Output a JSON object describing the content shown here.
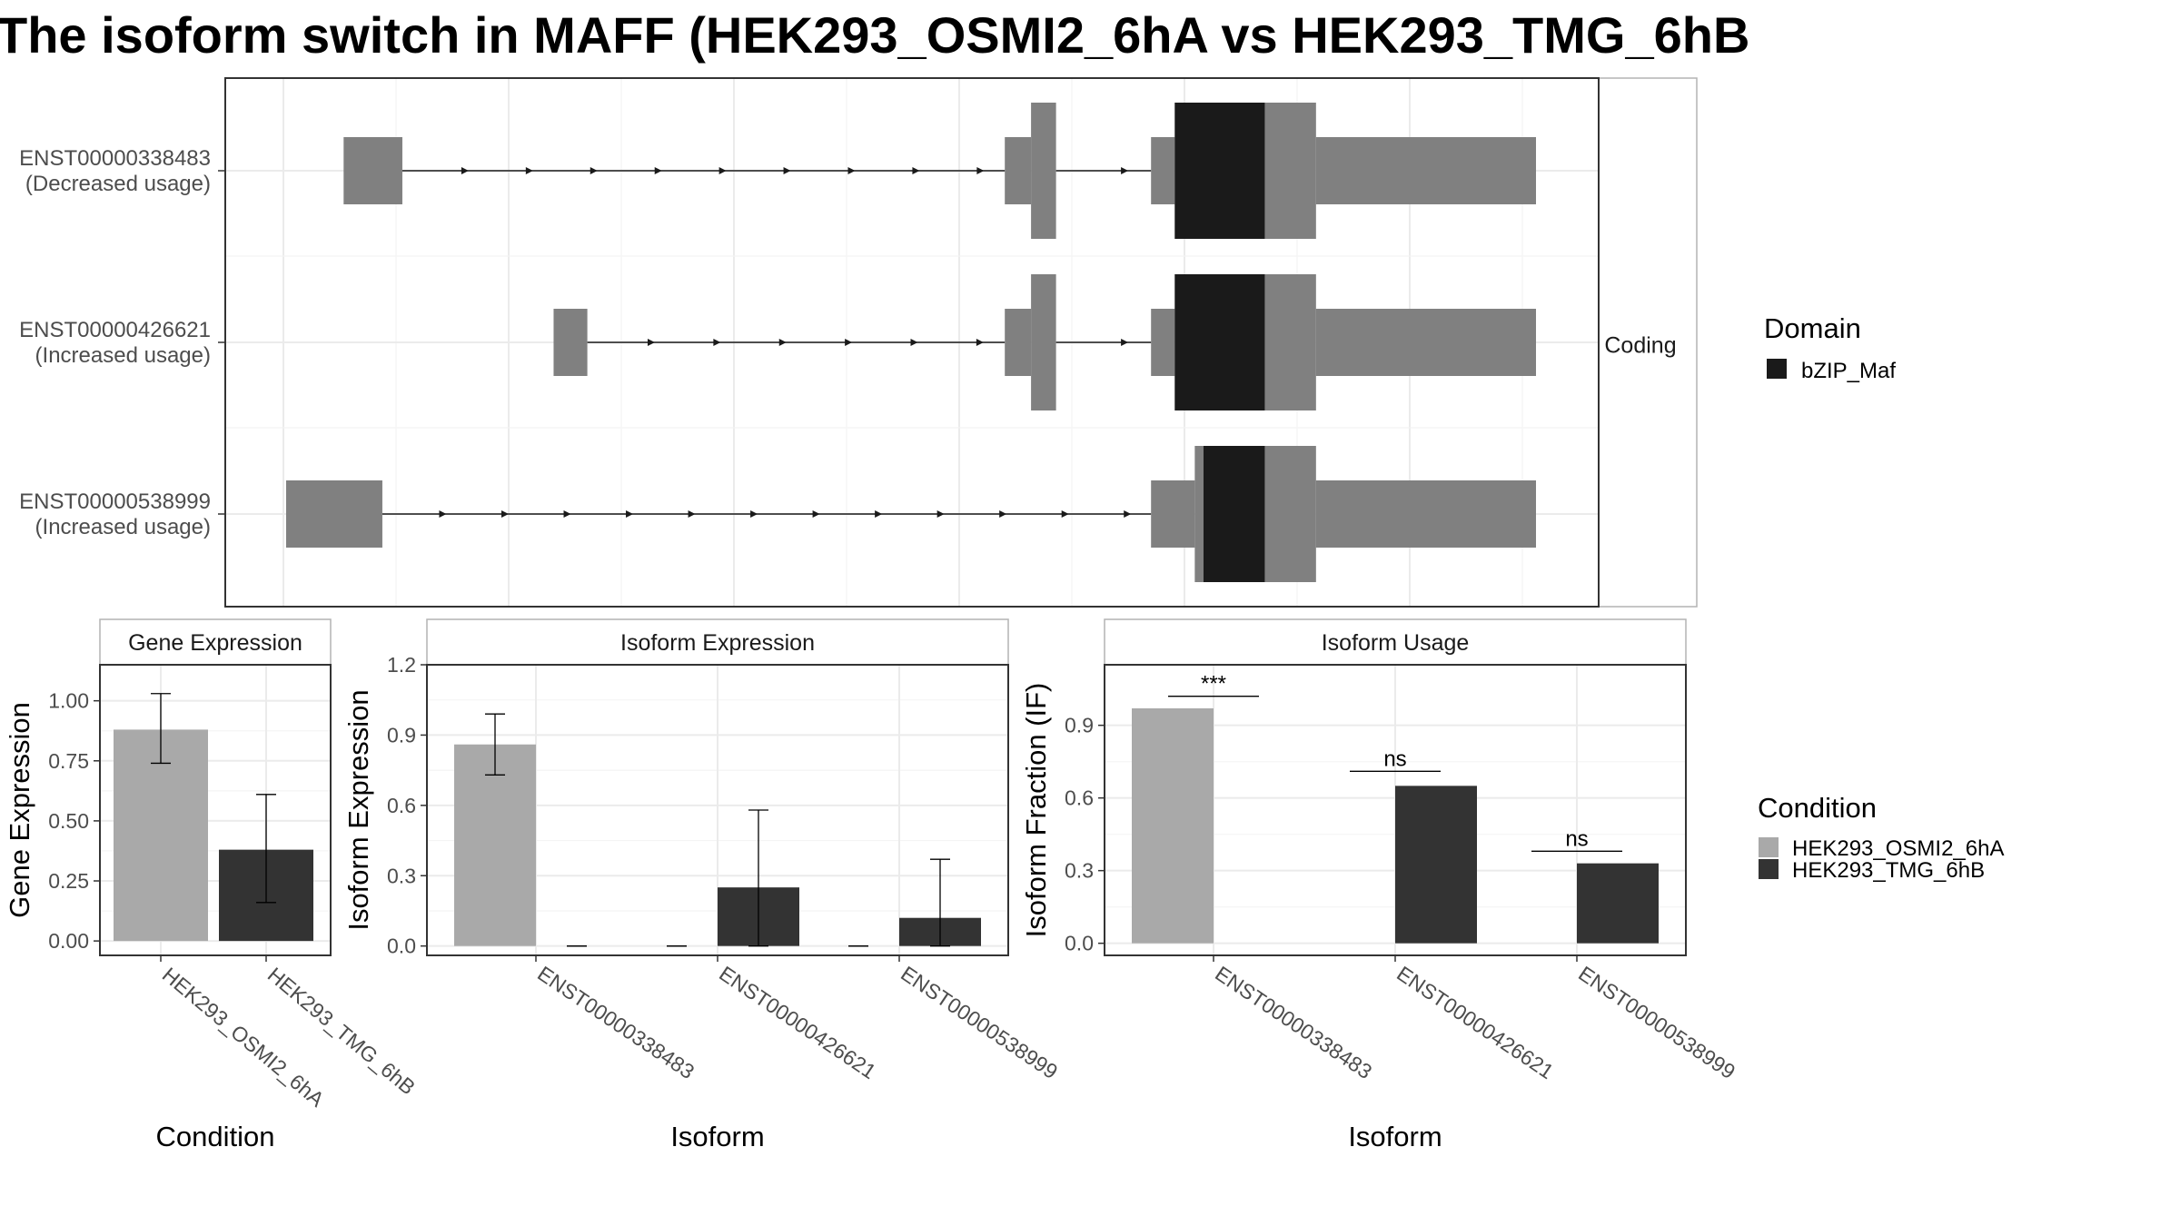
{
  "title": "The isoform switch in MAFF (HEK293_OSMI2_6hA vs HEK293_TMG_6hB",
  "colors": {
    "cond1": "#a9a9a9",
    "cond2": "#333333",
    "exon": "#808080",
    "domain": "#1a1a1a",
    "grid": "#ebebeb",
    "panel_border": "#333333",
    "strip_border": "#b3b3b3"
  },
  "structure": {
    "facet_label": "Coding",
    "isoforms": [
      {
        "id": "ENST00000338483",
        "usage": "(Decreased usage)",
        "exons": [
          [
            0.046,
            0.093
          ],
          [
            0.575,
            0.596
          ],
          [
            0.596,
            0.616
          ],
          [
            0.692,
            0.711
          ],
          [
            0.711,
            0.783
          ],
          [
            0.783,
            0.824
          ],
          [
            0.824,
            1.0
          ]
        ],
        "coding": [
          false,
          false,
          true,
          false,
          true,
          true,
          false
        ],
        "domains": [
          [
            0.711,
            0.783
          ]
        ]
      },
      {
        "id": "ENST00000426621",
        "usage": "(Increased usage)",
        "exons": [
          [
            0.214,
            0.241
          ],
          [
            0.575,
            0.596
          ],
          [
            0.596,
            0.616
          ],
          [
            0.692,
            0.711
          ],
          [
            0.711,
            0.783
          ],
          [
            0.783,
            0.824
          ],
          [
            0.824,
            1.0
          ]
        ],
        "coding": [
          false,
          false,
          true,
          false,
          true,
          true,
          false
        ],
        "domains": [
          [
            0.711,
            0.783
          ]
        ]
      },
      {
        "id": "ENST00000538999",
        "usage": "(Increased usage)",
        "exons": [
          [
            0.0,
            0.077
          ],
          [
            0.692,
            0.727
          ],
          [
            0.727,
            0.734
          ],
          [
            0.734,
            0.783
          ],
          [
            0.783,
            0.824
          ],
          [
            0.824,
            1.0
          ]
        ],
        "coding": [
          false,
          false,
          true,
          true,
          true,
          false
        ],
        "domains": [
          [
            0.734,
            0.783
          ]
        ]
      }
    ]
  },
  "legend_domain": {
    "title": "Domain",
    "items": [
      {
        "label": "bZIP_Maf"
      }
    ]
  },
  "legend_condition": {
    "title": "Condition",
    "items": [
      {
        "label": "HEK293_OSMI2_6hA"
      },
      {
        "label": "HEK293_TMG_6hB"
      }
    ]
  },
  "chart_data": [
    {
      "type": "bar",
      "title": "Gene Expression",
      "xlabel": "Condition",
      "ylabel": "Gene Expression",
      "ylim": [
        -0.06,
        1.15
      ],
      "yticks": [
        "0.00",
        "0.25",
        "0.50",
        "0.75",
        "1.00"
      ],
      "categories": [
        "HEK293_OSMI2_6hA",
        "HEK293_TMG_6hB"
      ],
      "series": [
        {
          "values": [
            0.88,
            null
          ],
          "err_low": [
            0.74,
            null
          ],
          "err_high": [
            1.03,
            null
          ]
        },
        {
          "values": [
            null,
            0.38
          ],
          "err_low": [
            null,
            0.16
          ],
          "err_high": [
            null,
            0.61
          ]
        }
      ]
    },
    {
      "type": "bar",
      "title": "Isoform Expression",
      "xlabel": "Isoform",
      "ylabel": "Isoform Expression",
      "ylim": [
        -0.04,
        1.2
      ],
      "yticks": [
        "0.0",
        "0.3",
        "0.6",
        "0.9",
        "1.2"
      ],
      "categories": [
        "ENST00000338483",
        "ENST00000426621",
        "ENST00000538999"
      ],
      "series": [
        {
          "values": [
            0.86,
            0.0,
            0.0
          ],
          "err_low": [
            0.73,
            0.0,
            0.0
          ],
          "err_high": [
            0.99,
            0.0,
            0.0
          ]
        },
        {
          "values": [
            0.0,
            0.25,
            0.12
          ],
          "err_low": [
            0.0,
            0.0,
            0.0
          ],
          "err_high": [
            0.0,
            0.58,
            0.37
          ]
        }
      ]
    },
    {
      "type": "bar",
      "title": "Isoform Usage",
      "xlabel": "Isoform",
      "ylabel": "Isoform Fraction (IF)",
      "ylim": [
        -0.05,
        1.15
      ],
      "yticks": [
        "0.0",
        "0.3",
        "0.6",
        "0.9"
      ],
      "categories": [
        "ENST00000338483",
        "ENST00000426621",
        "ENST00000538999"
      ],
      "series": [
        {
          "values": [
            0.97,
            null,
            null
          ]
        },
        {
          "values": [
            null,
            0.65,
            0.33
          ]
        }
      ],
      "significance": [
        "***",
        "ns",
        "ns"
      ],
      "sig_levels": [
        1.02,
        0.71,
        0.38
      ]
    }
  ]
}
